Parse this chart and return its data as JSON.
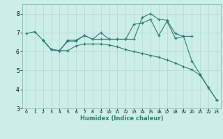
{
  "xlabel": "Humidex (Indice chaleur)",
  "bg_color": "#cceee8",
  "line_color": "#2e7d72",
  "grid_color": "#b0d8cf",
  "xlim": [
    -0.5,
    23.5
  ],
  "ylim": [
    3,
    8.5
  ],
  "yticks": [
    3,
    4,
    5,
    6,
    7,
    8
  ],
  "xticks": [
    0,
    1,
    2,
    3,
    4,
    5,
    6,
    7,
    8,
    9,
    10,
    11,
    12,
    13,
    14,
    15,
    16,
    17,
    18,
    19,
    20,
    21,
    22,
    23
  ],
  "line1_x": [
    0,
    1,
    2,
    3,
    4,
    5,
    6,
    7,
    8,
    9,
    10,
    11,
    12,
    13,
    14,
    15,
    16,
    17,
    18,
    19,
    20
  ],
  "line1_y": [
    6.95,
    7.05,
    6.6,
    6.1,
    6.05,
    6.6,
    6.6,
    6.85,
    6.65,
    6.65,
    6.65,
    6.65,
    6.65,
    7.45,
    7.5,
    7.7,
    6.85,
    7.6,
    6.7,
    6.8,
    6.8
  ],
  "line2_x": [
    2,
    3,
    4,
    5,
    6,
    7,
    8,
    9,
    10,
    11,
    12,
    13,
    14,
    15,
    16,
    17,
    18,
    19,
    20,
    21,
    22,
    23
  ],
  "line2_y": [
    6.6,
    6.1,
    6.05,
    6.55,
    6.55,
    6.85,
    6.65,
    7.0,
    6.65,
    6.65,
    6.65,
    6.65,
    7.8,
    8.0,
    7.7,
    7.65,
    6.95,
    6.8,
    5.5,
    4.8,
    4.1,
    3.45
  ],
  "line3_x": [
    2,
    3,
    4,
    5,
    6,
    7,
    8,
    9,
    10,
    11,
    12,
    13,
    14,
    15,
    16,
    17,
    18,
    19,
    20,
    21,
    22,
    23
  ],
  "line3_y": [
    6.6,
    6.1,
    6.05,
    6.05,
    6.3,
    6.4,
    6.4,
    6.4,
    6.35,
    6.25,
    6.1,
    6.0,
    5.9,
    5.8,
    5.7,
    5.55,
    5.4,
    5.2,
    5.05,
    4.75,
    4.1,
    3.45
  ]
}
